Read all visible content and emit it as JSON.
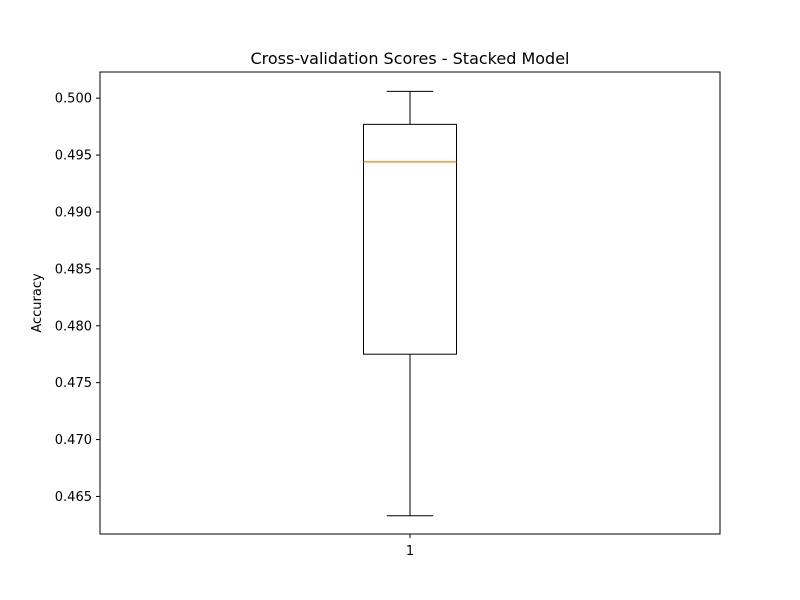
{
  "chart_data": {
    "type": "box",
    "title": "Cross-validation Scores - Stacked Model",
    "xlabel": "",
    "ylabel": "Accuracy",
    "categories": [
      "1"
    ],
    "yticks": [
      "0.465",
      "0.470",
      "0.475",
      "0.480",
      "0.485",
      "0.490",
      "0.495",
      "0.500"
    ],
    "ylim": [
      0.4617,
      0.5023
    ],
    "grid": false,
    "boxes": [
      {
        "category": "1",
        "whisker_low": 0.4633,
        "q1": 0.4775,
        "median": 0.4944,
        "q3": 0.4977,
        "whisker_high": 0.5006
      }
    ],
    "colors": {
      "box": "#000000",
      "median": "#ff7f0e",
      "axes": "#000000"
    }
  }
}
